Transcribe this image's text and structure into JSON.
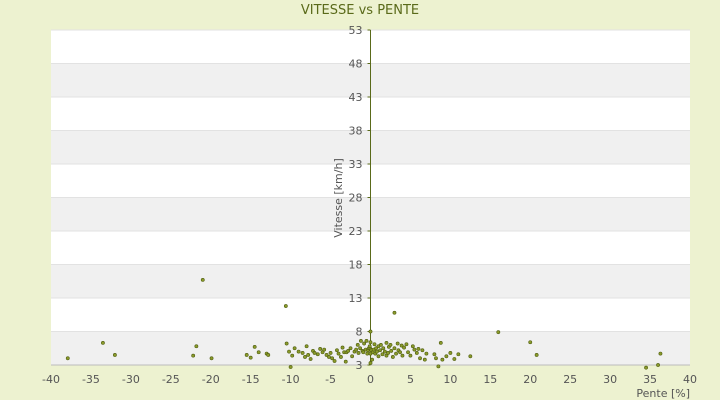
{
  "chart_data": {
    "type": "scatter",
    "title": "VITESSE vs PENTE",
    "xlabel": "Pente [%]",
    "ylabel": "Vitesse [km/h]",
    "xlim": [
      -40,
      40
    ],
    "ylim": [
      3,
      53
    ],
    "x_ticks": [
      "-40",
      "-35",
      "-30",
      "-25",
      "-20",
      "-15",
      "-10",
      "-5",
      "0",
      "5",
      "10",
      "15",
      "20",
      "25",
      "30",
      "35",
      "40"
    ],
    "y_ticks": [
      "3",
      "8",
      "13",
      "18",
      "23",
      "28",
      "33",
      "38",
      "43",
      "48",
      "53"
    ],
    "grid": "alternating horizontal bands",
    "colors": {
      "marker": "#8a9a2a",
      "marker_edge": "#4e5c10",
      "band": "#f0f0f0",
      "plot_bg": "#ffffff",
      "page_bg": "#edf2d0",
      "axis": "#5a6a1a"
    },
    "series": [
      {
        "points": [
          [
            -37.9,
            4.0
          ],
          [
            -33.5,
            6.3
          ],
          [
            -32.0,
            4.5
          ],
          [
            -22.2,
            4.4
          ],
          [
            -21.8,
            5.8
          ],
          [
            -21.0,
            15.7
          ],
          [
            -19.9,
            4.0
          ],
          [
            -15.5,
            4.5
          ],
          [
            -15.0,
            4.1
          ],
          [
            -14.5,
            5.7
          ],
          [
            -14.0,
            4.9
          ],
          [
            -13.0,
            4.7
          ],
          [
            -12.8,
            4.5
          ],
          [
            -10.6,
            11.8
          ],
          [
            -10.5,
            6.2
          ],
          [
            -10.2,
            5.0
          ],
          [
            -10.0,
            2.7
          ],
          [
            -9.8,
            4.4
          ],
          [
            -9.5,
            5.5
          ],
          [
            -9.0,
            5.0
          ],
          [
            -8.5,
            4.8
          ],
          [
            -8.2,
            4.2
          ],
          [
            -8.0,
            5.8
          ],
          [
            -7.8,
            4.5
          ],
          [
            -7.5,
            3.9
          ],
          [
            -7.2,
            5.1
          ],
          [
            -7.0,
            4.8
          ],
          [
            -6.6,
            4.6
          ],
          [
            -6.3,
            5.4
          ],
          [
            -6.0,
            4.9
          ],
          [
            -5.8,
            5.3
          ],
          [
            -5.5,
            4.5
          ],
          [
            -5.2,
            4.2
          ],
          [
            -5.0,
            4.8
          ],
          [
            -4.8,
            4.0
          ],
          [
            -4.5,
            3.6
          ],
          [
            -4.2,
            5.2
          ],
          [
            -4.0,
            4.7
          ],
          [
            -3.7,
            4.2
          ],
          [
            -3.5,
            5.6
          ],
          [
            -3.3,
            4.9
          ],
          [
            -3.1,
            3.5
          ],
          [
            -3.0,
            4.9
          ],
          [
            -2.8,
            5.1
          ],
          [
            -2.5,
            5.5
          ],
          [
            -2.3,
            4.3
          ],
          [
            -2.0,
            5.0
          ],
          [
            -1.8,
            5.3
          ],
          [
            -1.6,
            6.0
          ],
          [
            -1.5,
            4.8
          ],
          [
            -1.3,
            5.5
          ],
          [
            -1.2,
            6.6
          ],
          [
            -1.0,
            5.1
          ],
          [
            -0.9,
            4.9
          ],
          [
            -0.8,
            6.2
          ],
          [
            -0.6,
            5.3
          ],
          [
            -0.5,
            6.6
          ],
          [
            -0.4,
            4.7
          ],
          [
            -0.3,
            5.2
          ],
          [
            -0.2,
            5.5
          ],
          [
            -0.1,
            5.8
          ],
          [
            0.0,
            5.4
          ],
          [
            0.0,
            4.7
          ],
          [
            0.0,
            8.0
          ],
          [
            0.0,
            6.4
          ],
          [
            0.0,
            3.3
          ],
          [
            0.1,
            5.2
          ],
          [
            0.2,
            3.8
          ],
          [
            0.3,
            4.9
          ],
          [
            0.4,
            5.3
          ],
          [
            0.5,
            6.1
          ],
          [
            0.6,
            4.7
          ],
          [
            0.7,
            5.5
          ],
          [
            0.8,
            5.0
          ],
          [
            1.0,
            4.3
          ],
          [
            1.0,
            5.8
          ],
          [
            1.2,
            5.2
          ],
          [
            1.3,
            6.0
          ],
          [
            1.5,
            4.6
          ],
          [
            1.6,
            5.5
          ],
          [
            1.8,
            5.0
          ],
          [
            2.0,
            4.4
          ],
          [
            2.0,
            6.3
          ],
          [
            2.2,
            4.8
          ],
          [
            2.3,
            5.7
          ],
          [
            2.5,
            6.0
          ],
          [
            2.6,
            5.1
          ],
          [
            2.8,
            4.2
          ],
          [
            3.0,
            5.5
          ],
          [
            3.0,
            10.8
          ],
          [
            3.2,
            4.7
          ],
          [
            3.4,
            6.2
          ],
          [
            3.5,
            5.2
          ],
          [
            3.7,
            4.9
          ],
          [
            3.9,
            5.9
          ],
          [
            4.0,
            4.4
          ],
          [
            4.2,
            5.6
          ],
          [
            4.5,
            6.1
          ],
          [
            4.7,
            4.9
          ],
          [
            5.0,
            4.4
          ],
          [
            5.3,
            5.8
          ],
          [
            5.5,
            5.3
          ],
          [
            5.8,
            4.8
          ],
          [
            6.0,
            5.4
          ],
          [
            6.2,
            4.0
          ],
          [
            6.5,
            5.2
          ],
          [
            6.8,
            3.8
          ],
          [
            7.0,
            4.7
          ],
          [
            8.0,
            4.6
          ],
          [
            8.2,
            4.0
          ],
          [
            8.5,
            2.8
          ],
          [
            8.8,
            6.3
          ],
          [
            9.0,
            3.8
          ],
          [
            9.5,
            4.3
          ],
          [
            10.0,
            4.8
          ],
          [
            10.5,
            3.9
          ],
          [
            11.0,
            4.6
          ],
          [
            12.5,
            4.3
          ],
          [
            16.0,
            7.9
          ],
          [
            20.0,
            6.4
          ],
          [
            20.8,
            4.5
          ],
          [
            34.5,
            2.6
          ],
          [
            36.0,
            3.0
          ],
          [
            36.3,
            4.7
          ]
        ]
      }
    ]
  }
}
